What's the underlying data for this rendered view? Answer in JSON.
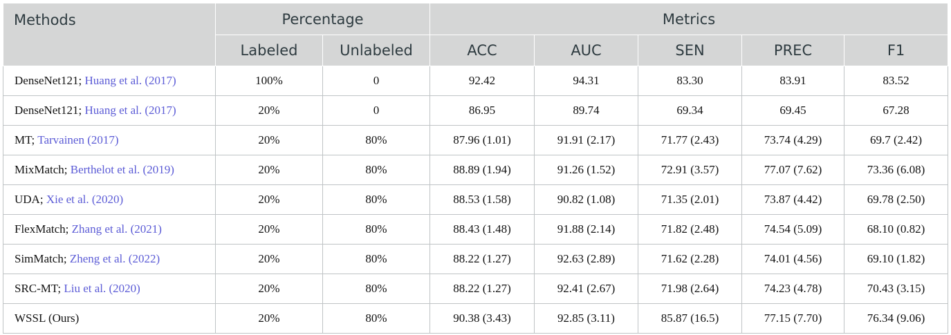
{
  "header": {
    "methods": "Methods",
    "percentage": "Percentage",
    "metrics": "Metrics",
    "labeled": "Labeled",
    "unlabeled": "Unlabeled",
    "acc": "ACC",
    "auc": "AUC",
    "sen": "SEN",
    "prec": "PREC",
    "f1": "F1"
  },
  "rows": [
    {
      "name": "DenseNet121;",
      "ref": "Huang et al. (2017)",
      "labeled": "100%",
      "unlabeled": "0",
      "acc": "92.42",
      "auc": "94.31",
      "sen": "83.30",
      "prec": "83.91",
      "f1": "83.52"
    },
    {
      "name": "DenseNet121;",
      "ref": "Huang et al. (2017)",
      "labeled": "20%",
      "unlabeled": "0",
      "acc": "86.95",
      "auc": "89.74",
      "sen": "69.34",
      "prec": "69.45",
      "f1": "67.28"
    },
    {
      "name": "MT;",
      "ref": "Tarvainen (2017)",
      "labeled": "20%",
      "unlabeled": "80%",
      "acc": "87.96 (1.01)",
      "auc": "91.91 (2.17)",
      "sen": "71.77 (2.43)",
      "prec": "73.74 (4.29)",
      "f1": "69.7 (2.42)"
    },
    {
      "name": "MixMatch;",
      "ref": "Berthelot et al. (2019)",
      "labeled": "20%",
      "unlabeled": "80%",
      "acc": "88.89 (1.94)",
      "auc": "91.26 (1.52)",
      "sen": "72.91 (3.57)",
      "prec": "77.07 (7.62)",
      "f1": "73.36 (6.08)"
    },
    {
      "name": "UDA;",
      "ref": "Xie et al. (2020)",
      "labeled": "20%",
      "unlabeled": "80%",
      "acc": "88.53 (1.58)",
      "auc": "90.82 (1.08)",
      "sen": "71.35 (2.01)",
      "prec": "73.87 (4.42)",
      "f1": "69.78 (2.50)"
    },
    {
      "name": "FlexMatch;",
      "ref": "Zhang et al. (2021)",
      "labeled": "20%",
      "unlabeled": "80%",
      "acc": "88.43 (1.48)",
      "auc": "91.88 (2.14)",
      "sen": "71.82 (2.48)",
      "prec": "74.54 (5.09)",
      "f1": "68.10 (0.82)"
    },
    {
      "name": "SimMatch;",
      "ref": "Zheng et al. (2022)",
      "labeled": "20%",
      "unlabeled": "80%",
      "acc": "88.22 (1.27)",
      "auc": "92.63 (2.89)",
      "sen": "71.62 (2.28)",
      "prec": "74.01 (4.56)",
      "f1": "69.10 (1.82)"
    },
    {
      "name": "SRC-MT;",
      "ref": "Liu et al. (2020)",
      "labeled": "20%",
      "unlabeled": "80%",
      "acc": "88.22 (1.27)",
      "auc": "92.41 (2.67)",
      "sen": "71.98 (2.64)",
      "prec": "74.23 (4.78)",
      "f1": "70.43 (3.15)"
    },
    {
      "name": "WSSL (Ours)",
      "ref": "",
      "labeled": "20%",
      "unlabeled": "80%",
      "acc": "90.38 (3.43)",
      "auc": "92.85 (3.11)",
      "sen": "85.87 (16.5)",
      "prec": "77.15 (7.70)",
      "f1": "76.34 (9.06)"
    }
  ]
}
